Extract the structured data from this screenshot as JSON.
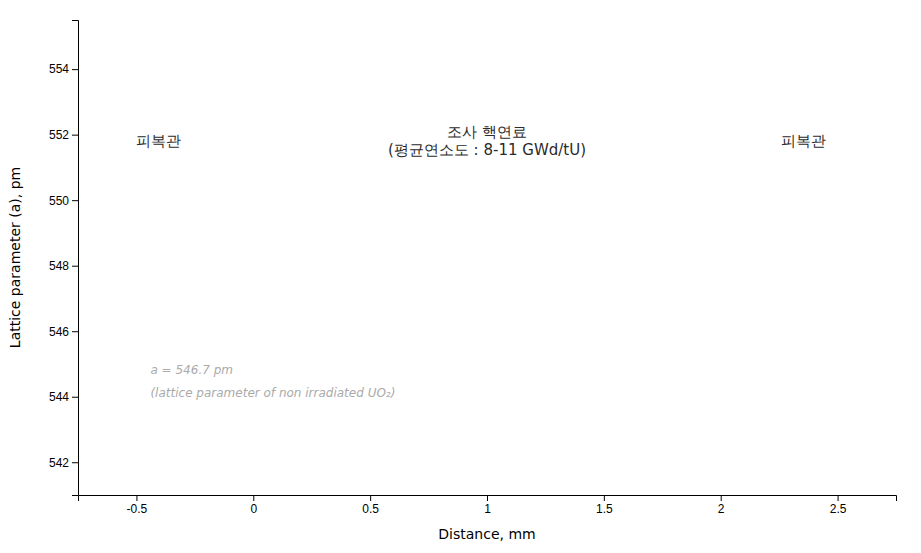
{
  "chart_data": {
    "type": "text",
    "xlabel": "Distance, mm",
    "ylabel": "Lattice parameter (a), pm",
    "xlim": [
      -0.75,
      2.75
    ],
    "ylim": [
      541,
      555.5
    ],
    "xticks": [
      -0.5,
      0,
      0.5,
      1,
      1.5,
      2,
      2.5
    ],
    "yticks": [
      542,
      544,
      546,
      548,
      550,
      552,
      554
    ],
    "grid": false,
    "annotations": [
      {
        "text": "피복관",
        "x": -0.5,
        "y": 551.8,
        "color": "#2b2b2b"
      },
      {
        "text": "조사 핵연료",
        "x": 1.0,
        "y": 552.08,
        "color": "#2b2b2b"
      },
      {
        "text": "(평균연소도 : 8-11 GWd/tU)",
        "x": 1.0,
        "y": 551.52,
        "color": "#2b2b2b"
      },
      {
        "text": "피복관",
        "x": 2.45,
        "y": 551.8,
        "color": "#2b2b2b"
      },
      {
        "text": "a = 546.7 pm",
        "x": -0.44,
        "y": 544.8,
        "color": "#aaaaaa"
      },
      {
        "text": "(lattice parameter of non irradiated UO₂)",
        "x": -0.44,
        "y": 544.1,
        "color": "#aaaaaa"
      }
    ]
  }
}
